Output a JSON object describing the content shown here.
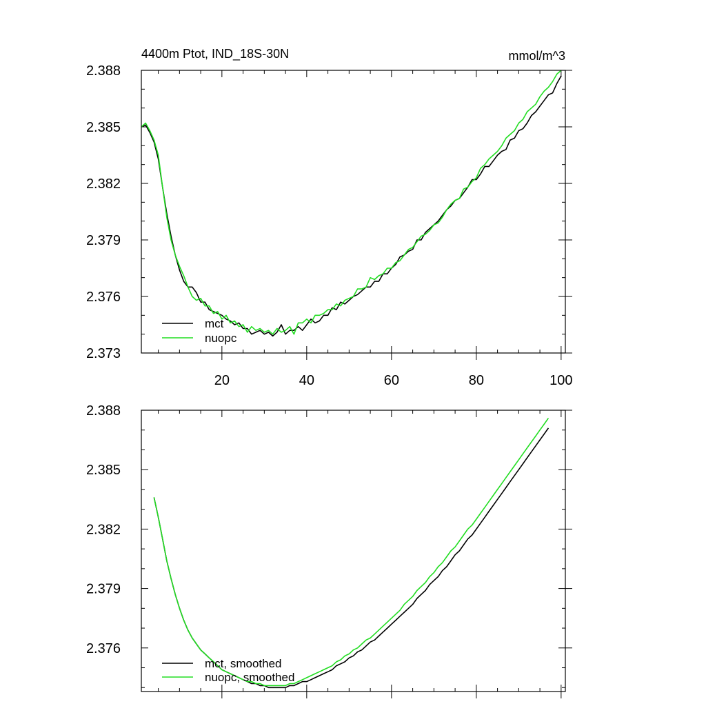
{
  "colors": {
    "mct": "#000000",
    "nuopc": "#22dd22"
  },
  "chart_data": [
    {
      "type": "line",
      "title_left": "4400m Ptot, IND_18S-30N",
      "title_right": "mmol/m^3",
      "xlabel": "",
      "ylabel": "",
      "xlim": [
        1,
        101
      ],
      "ylim": [
        2.373,
        2.388
      ],
      "xticks": [
        20,
        40,
        60,
        80,
        100
      ],
      "xtick_labels": [
        "20",
        "40",
        "60",
        "80",
        "100"
      ],
      "yticks": [
        2.373,
        2.376,
        2.379,
        2.382,
        2.385,
        2.388
      ],
      "ytick_labels": [
        "2.373",
        "2.376",
        "2.379",
        "2.382",
        "2.385",
        "2.388"
      ],
      "legend": [
        "mct",
        "nuopc"
      ],
      "legend_position": "bottom-left",
      "series": [
        {
          "name": "mct",
          "x": [
            1,
            2,
            3,
            4,
            5,
            6,
            7,
            8,
            9,
            10,
            11,
            12,
            13,
            14,
            15,
            16,
            17,
            18,
            19,
            20,
            21,
            22,
            23,
            24,
            25,
            26,
            27,
            28,
            29,
            30,
            31,
            32,
            33,
            34,
            35,
            36,
            37,
            38,
            39,
            40,
            41,
            42,
            43,
            44,
            45,
            46,
            47,
            48,
            49,
            50,
            51,
            52,
            53,
            54,
            55,
            56,
            57,
            58,
            59,
            60,
            61,
            62,
            63,
            64,
            65,
            66,
            67,
            68,
            69,
            70,
            71,
            72,
            73,
            74,
            75,
            76,
            77,
            78,
            79,
            80,
            81,
            82,
            83,
            84,
            85,
            86,
            87,
            88,
            89,
            90,
            91,
            92,
            93,
            94,
            95,
            96,
            97,
            98,
            99,
            100
          ],
          "values": [
            2.385,
            2.3851,
            2.3847,
            2.3842,
            2.3833,
            2.3818,
            2.3804,
            2.3792,
            2.3782,
            2.3774,
            2.3768,
            2.3765,
            2.3765,
            2.3762,
            2.3757,
            2.3757,
            2.3753,
            2.3752,
            2.3751,
            2.375,
            2.3748,
            2.3747,
            2.3745,
            2.3746,
            2.3743,
            2.3743,
            2.374,
            2.3741,
            2.3742,
            2.374,
            2.3741,
            2.3739,
            2.3741,
            2.3745,
            2.374,
            2.3742,
            2.3742,
            2.3744,
            2.3742,
            2.3745,
            2.3748,
            2.3746,
            2.3747,
            2.375,
            2.375,
            2.3754,
            2.3753,
            2.3757,
            2.3756,
            2.3758,
            2.376,
            2.3761,
            2.3763,
            2.3765,
            2.3765,
            2.3768,
            2.3768,
            2.3772,
            2.3772,
            2.3775,
            2.3777,
            2.3781,
            2.3782,
            2.3784,
            2.3785,
            2.379,
            2.379,
            2.3794,
            2.3796,
            2.3798,
            2.38,
            2.3803,
            2.3806,
            2.3808,
            2.3811,
            2.3812,
            2.3815,
            2.3818,
            2.3822,
            2.3822,
            2.3825,
            2.3829,
            2.3829,
            2.3832,
            2.3835,
            2.3837,
            2.3838,
            2.3843,
            2.3844,
            2.3848,
            2.3849,
            2.3852,
            2.3856,
            2.3858,
            2.3861,
            2.3864,
            2.3867,
            2.3868,
            2.3873,
            2.3877
          ]
        },
        {
          "name": "nuopc",
          "x": [
            1,
            2,
            3,
            4,
            5,
            6,
            7,
            8,
            9,
            10,
            11,
            12,
            13,
            14,
            15,
            16,
            17,
            18,
            19,
            20,
            21,
            22,
            23,
            24,
            25,
            26,
            27,
            28,
            29,
            30,
            31,
            32,
            33,
            34,
            35,
            36,
            37,
            38,
            39,
            40,
            41,
            42,
            43,
            44,
            45,
            46,
            47,
            48,
            49,
            50,
            51,
            52,
            53,
            54,
            55,
            56,
            57,
            58,
            59,
            60,
            61,
            62,
            63,
            64,
            65,
            66,
            67,
            68,
            69,
            70,
            71,
            72,
            73,
            74,
            75,
            76,
            77,
            78,
            79,
            80,
            81,
            82,
            83,
            84,
            85,
            86,
            87,
            88,
            89,
            90,
            91,
            92,
            93,
            94,
            95,
            96,
            97,
            98,
            99,
            100
          ],
          "values": [
            2.385,
            2.3852,
            2.3848,
            2.3843,
            2.3835,
            2.3818,
            2.3802,
            2.379,
            2.3782,
            2.3776,
            2.3771,
            2.3765,
            2.376,
            2.3758,
            2.3759,
            2.3755,
            2.3755,
            2.3751,
            2.3752,
            2.3748,
            2.375,
            2.3746,
            2.3747,
            2.3744,
            2.3745,
            2.3741,
            2.3744,
            2.3742,
            2.3743,
            2.3741,
            2.3742,
            2.374,
            2.3743,
            2.3741,
            2.3742,
            2.3744,
            2.374,
            2.3746,
            2.3746,
            2.3748,
            2.3746,
            2.375,
            2.375,
            2.3751,
            2.3753,
            2.3753,
            2.3756,
            2.3755,
            2.3758,
            2.3759,
            2.376,
            2.3764,
            2.3764,
            2.3765,
            2.377,
            2.3769,
            2.3771,
            2.3772,
            2.3775,
            2.3775,
            2.3778,
            2.3779,
            2.3782,
            2.3785,
            2.3786,
            2.3789,
            2.3792,
            2.3793,
            2.3795,
            2.3798,
            2.3799,
            2.3802,
            2.3806,
            2.3809,
            2.3811,
            2.3812,
            2.3817,
            2.3818,
            2.3821,
            2.3823,
            2.3828,
            2.383,
            2.3833,
            2.3835,
            2.3837,
            2.384,
            2.3844,
            2.3846,
            2.3848,
            2.3852,
            2.3854,
            2.3858,
            2.386,
            2.3862,
            2.3866,
            2.3869,
            2.3871,
            2.3874,
            2.3878,
            2.388
          ]
        }
      ]
    },
    {
      "type": "line",
      "title_left": "",
      "title_right": "",
      "xlabel": "",
      "ylabel": "",
      "xlim": [
        1,
        101
      ],
      "ylim": [
        2.3738,
        2.388
      ],
      "xticks": [
        20,
        40,
        60,
        80,
        100
      ],
      "xtick_labels": [],
      "yticks": [
        2.376,
        2.379,
        2.382,
        2.385,
        2.388
      ],
      "ytick_labels": [
        "2.376",
        "2.379",
        "2.382",
        "2.385",
        "2.388"
      ],
      "legend": [
        "mct, smoothed",
        "nuopc, smoothed"
      ],
      "legend_position": "bottom-left",
      "series": [
        {
          "name": "mct, smoothed",
          "x": [
            4,
            5,
            6,
            7,
            8,
            9,
            10,
            11,
            12,
            13,
            14,
            15,
            16,
            17,
            18,
            19,
            20,
            21,
            22,
            23,
            24,
            25,
            26,
            27,
            28,
            29,
            30,
            31,
            32,
            33,
            34,
            35,
            36,
            37,
            38,
            39,
            40,
            41,
            42,
            43,
            44,
            45,
            46,
            47,
            48,
            49,
            50,
            51,
            52,
            53,
            54,
            55,
            56,
            57,
            58,
            59,
            60,
            61,
            62,
            63,
            64,
            65,
            66,
            67,
            68,
            69,
            70,
            71,
            72,
            73,
            74,
            75,
            76,
            77,
            78,
            79,
            80,
            81,
            82,
            83,
            84,
            85,
            86,
            87,
            88,
            89,
            90,
            91,
            92,
            93,
            94,
            95,
            96,
            97
          ],
          "values": [
            2.3836,
            2.3826,
            2.3815,
            2.3804,
            2.3795,
            2.3787,
            2.378,
            2.3774,
            2.3769,
            2.3765,
            2.3762,
            2.3759,
            2.3757,
            2.3755,
            2.3753,
            2.3751,
            2.3749,
            2.3748,
            2.3747,
            2.3746,
            2.3745,
            2.3744,
            2.3743,
            2.3742,
            2.3742,
            2.3741,
            2.3741,
            2.374,
            2.374,
            2.374,
            2.374,
            2.374,
            2.3741,
            2.3741,
            2.3742,
            2.3743,
            2.3743,
            2.3744,
            2.3745,
            2.3746,
            2.3747,
            2.3748,
            2.3749,
            2.3751,
            2.3752,
            2.3753,
            2.3755,
            2.3756,
            2.3758,
            2.3759,
            2.3761,
            2.3763,
            2.3764,
            2.3766,
            2.3768,
            2.377,
            2.3772,
            2.3774,
            2.3776,
            2.3778,
            2.378,
            2.3782,
            2.3785,
            2.3787,
            2.3789,
            2.3792,
            2.3794,
            2.3796,
            2.3799,
            2.3801,
            2.3804,
            2.3807,
            2.3809,
            2.3812,
            2.3815,
            2.3817,
            2.382,
            2.3823,
            2.3826,
            2.3829,
            2.3832,
            2.3835,
            2.3838,
            2.3841,
            2.3844,
            2.3847,
            2.385,
            2.3853,
            2.3856,
            2.3859,
            2.3862,
            2.3865,
            2.3868,
            2.3871
          ]
        },
        {
          "name": "nuopc, smoothed",
          "x": [
            4,
            5,
            6,
            7,
            8,
            9,
            10,
            11,
            12,
            13,
            14,
            15,
            16,
            17,
            18,
            19,
            20,
            21,
            22,
            23,
            24,
            25,
            26,
            27,
            28,
            29,
            30,
            31,
            32,
            33,
            34,
            35,
            36,
            37,
            38,
            39,
            40,
            41,
            42,
            43,
            44,
            45,
            46,
            47,
            48,
            49,
            50,
            51,
            52,
            53,
            54,
            55,
            56,
            57,
            58,
            59,
            60,
            61,
            62,
            63,
            64,
            65,
            66,
            67,
            68,
            69,
            70,
            71,
            72,
            73,
            74,
            75,
            76,
            77,
            78,
            79,
            80,
            81,
            82,
            83,
            84,
            85,
            86,
            87,
            88,
            89,
            90,
            91,
            92,
            93,
            94,
            95,
            96,
            97
          ],
          "values": [
            2.3836,
            2.3826,
            2.3815,
            2.3804,
            2.3795,
            2.3787,
            2.378,
            2.3774,
            2.3769,
            2.3765,
            2.3762,
            2.3759,
            2.3757,
            2.3755,
            2.3753,
            2.3751,
            2.3749,
            2.3748,
            2.3747,
            2.3746,
            2.3745,
            2.3744,
            2.3743,
            2.3743,
            2.3742,
            2.3742,
            2.3741,
            2.3741,
            2.3741,
            2.3741,
            2.3741,
            2.3741,
            2.3742,
            2.3742,
            2.3743,
            2.3744,
            2.3745,
            2.3746,
            2.3747,
            2.3748,
            2.3749,
            2.375,
            2.3751,
            2.3753,
            2.3754,
            2.3756,
            2.3757,
            2.3759,
            2.376,
            2.3762,
            2.3764,
            2.3765,
            2.3767,
            2.3769,
            2.3771,
            2.3773,
            2.3775,
            2.3777,
            2.3779,
            2.3782,
            2.3784,
            2.3786,
            2.3789,
            2.3791,
            2.3793,
            2.3796,
            2.3798,
            2.3801,
            2.3803,
            2.3806,
            2.3809,
            2.3811,
            2.3814,
            2.3817,
            2.382,
            2.3822,
            2.3825,
            2.3828,
            2.3831,
            2.3834,
            2.3837,
            2.384,
            2.3843,
            2.3846,
            2.3849,
            2.3852,
            2.3855,
            2.3858,
            2.3861,
            2.3864,
            2.3867,
            2.387,
            2.3873,
            2.3876
          ]
        }
      ]
    }
  ]
}
